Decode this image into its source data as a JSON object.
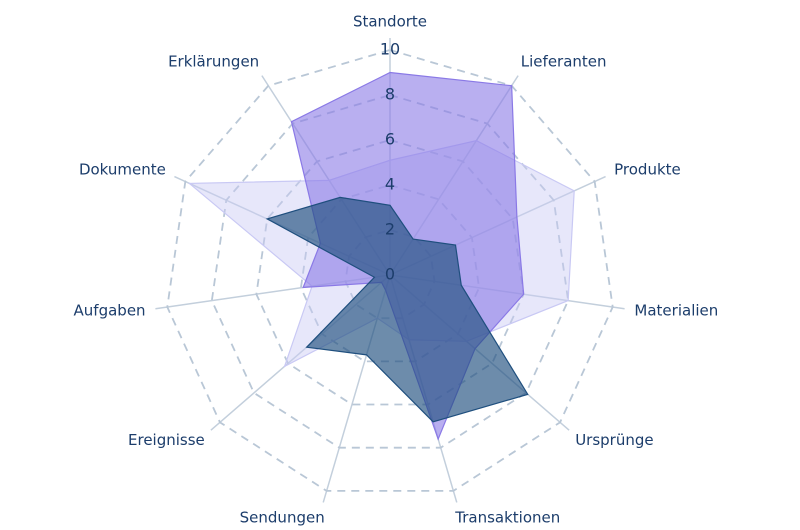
{
  "chart_data": {
    "type": "radar",
    "categories": [
      "Standorte",
      "Lieferanten",
      "Produkte",
      "Materialien",
      "Ursprünge",
      "Transaktionen",
      "Sendungen",
      "Ereignisse",
      "Aufgaben",
      "Dokumente",
      "Erklärungen"
    ],
    "series": [
      {
        "color": "#c9c9f4",
        "values": [
          5.1,
          7.1,
          9.0,
          8.0,
          4.5,
          3.0,
          2.0,
          6.2,
          3.5,
          9.8,
          5.0
        ]
      },
      {
        "color": "#8a79e6",
        "values": [
          9.0,
          10.0,
          6.2,
          6.0,
          5.0,
          7.6,
          0.7,
          0.5,
          3.9,
          3.4,
          8.1
        ]
      },
      {
        "color": "#1f4f7e",
        "values": [
          3.1,
          1.9,
          3.2,
          3.2,
          8.1,
          6.8,
          3.7,
          4.9,
          0.7,
          6.0,
          4.1
        ]
      }
    ],
    "rlim": [
      0,
      10
    ],
    "rticks": [
      0,
      2,
      4,
      6,
      8,
      10
    ],
    "grid": true
  }
}
